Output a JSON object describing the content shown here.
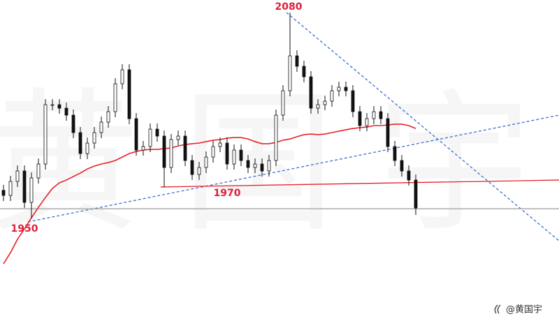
{
  "chart_data": {
    "type": "candlestick",
    "watermark": "黄国宇",
    "credit": "@黄国宇",
    "xlim": [
      -0.5,
      79.5
    ],
    "ylim": [
      1876.8,
      2088
    ],
    "open": [
      1968,
      1964.8,
      1973.6,
      1980.2,
      1960.4,
      1975.8,
      1984.6,
      2022,
      2022,
      2019.8,
      2015.4,
      2004.4,
      1991.2,
      1997.8,
      2004.4,
      2011,
      2017.6,
      2035.2,
      2044,
      2013.2,
      1993.4,
      1995.6,
      2006.6,
      2002.2,
      1982.4,
      2000,
      2002.2,
      1986.8,
      1978,
      1982.4,
      1989,
      1995.6,
      1997.8,
      1984.6,
      1993.4,
      1986.8,
      1982.4,
      1984.6,
      1980.2,
      1986.8,
      2015.4,
      2030.8,
      2052.8,
      2046.2,
      2039.6,
      2019.8,
      2022,
      2024.2,
      2030.8,
      2033,
      2030.8,
      2017.6,
      2008.8,
      2013.2,
      2017.6,
      2013.2,
      1995.6,
      1986.8,
      1980.2,
      1974.5
    ],
    "high": [
      1971.5,
      1977.1,
      1983.7,
      1983.7,
      1979.3,
      1988.1,
      2025.5,
      2025.5,
      2025.5,
      2023.3,
      2018.9,
      2007.9,
      2001.3,
      2007.9,
      2014.5,
      2021.1,
      2038.7,
      2047.5,
      2047.5,
      2016.7,
      1999.1,
      2010.1,
      2010.1,
      2005.7,
      2003.5,
      2005.7,
      2005.7,
      1990.3,
      1985.9,
      1992.5,
      1999.1,
      2001.3,
      2001.3,
      1996.9,
      1996.9,
      1990.3,
      1988.1,
      1988.1,
      1990.3,
      2018.9,
      2034.3,
      2080.1,
      2056.3,
      2049.7,
      2043.1,
      2025.5,
      2027.7,
      2034.3,
      2036.5,
      2036.5,
      2034.3,
      2021.1,
      2016.7,
      2021.1,
      2021.1,
      2016.7,
      1999.1,
      1990.3,
      1983.7,
      1978
    ],
    "low": [
      1961.3,
      1961.3,
      1970.1,
      1956.9,
      1950.3,
      1972.3,
      1981.1,
      2018.5,
      2016.3,
      2011.9,
      2000.9,
      1987.7,
      1987.7,
      1994.3,
      2000.9,
      2007.5,
      2014.1,
      2031.7,
      2009.7,
      1989.9,
      1989.9,
      1992.1,
      1998.7,
      1970.1,
      1978.9,
      1996.5,
      1983.3,
      1974.5,
      1974.5,
      1978.9,
      1985.5,
      1992.1,
      1981.1,
      1981.1,
      1983.3,
      1978.9,
      1978.9,
      1976.7,
      1976.7,
      1983.3,
      2011.9,
      2027.3,
      2042.7,
      2036.1,
      2016.3,
      2016.3,
      2018.5,
      2020.7,
      2027.3,
      2027.3,
      2014.1,
      2005.3,
      2005.3,
      2009.7,
      2009.7,
      1992.1,
      1983.3,
      1976.7,
      1971,
      1952.5
    ],
    "close": [
      1964.8,
      1973.6,
      1980.2,
      1960.4,
      1975.8,
      1984.6,
      2022,
      2022,
      2019.8,
      2015.4,
      2004.4,
      1991.2,
      1997.8,
      2004.4,
      2011,
      2017.6,
      2035.2,
      2044,
      2013.2,
      1993.4,
      1995.6,
      2006.6,
      2002.2,
      1982.4,
      2000,
      2002.2,
      1986.8,
      1978,
      1982.4,
      1989,
      1995.6,
      1997.8,
      1984.6,
      1993.4,
      1986.8,
      1982.4,
      1984.6,
      1980.2,
      1986.8,
      2015.4,
      2030.8,
      2052.8,
      2046.2,
      2039.6,
      2019.8,
      2022,
      2024.2,
      2030.8,
      2033,
      2030.8,
      2017.6,
      2008.8,
      2013.2,
      2017.6,
      2013.2,
      1995.6,
      1986.8,
      1980.2,
      1974.5,
      1956.9
    ],
    "moving_average": {
      "color": "#e8202a",
      "values": [
        1921.7,
        1928.7,
        1937.1,
        1943.7,
        1950.7,
        1957.3,
        1963.5,
        1969.2,
        1972.7,
        1974.5,
        1976.7,
        1978.9,
        1981.5,
        1983.3,
        1984.6,
        1985.5,
        1986.8,
        1989,
        1991.2,
        1992.5,
        1993.4,
        1993.8,
        1993.8,
        1994.3,
        1994.7,
        1996,
        1996.9,
        1997.4,
        1997.8,
        1998.7,
        1999.6,
        2000,
        2000.9,
        2001.3,
        2001.3,
        2000.4,
        1998.7,
        1997.4,
        1997.4,
        1998.2,
        1999.6,
        2000.4,
        2001.8,
        2003.1,
        2003.5,
        2003.1,
        2003.5,
        2004.4,
        2005.3,
        2006.2,
        2007,
        2007.5,
        2007.9,
        2008.8,
        2008.8,
        2009.2,
        2009.7,
        2009.7,
        2008.8,
        2007
      ]
    },
    "lines": [
      {
        "x": [
          3.5,
          79.5
        ],
        "y": [
          1948.1,
          2015.4
        ],
        "color": "#3a6fd0",
        "dashed": true
      },
      {
        "x": [
          40.5,
          79.5
        ],
        "y": [
          2080.1,
          1936.2
        ],
        "color": "#3a6fd0",
        "dashed": true
      },
      {
        "x": [
          22.5,
          79.5
        ],
        "y": [
          1970.1,
          1974.5
        ],
        "color": "#e8202a",
        "dashed": false
      },
      {
        "x": [
          -0.5,
          79.5
        ],
        "y": [
          1956.4,
          1956.4
        ],
        "color": "#9a9a9a",
        "dashed": false
      }
    ],
    "annotations": [
      "1950",
      "1970",
      "2080"
    ],
    "annotation_color": "#e0203a"
  }
}
